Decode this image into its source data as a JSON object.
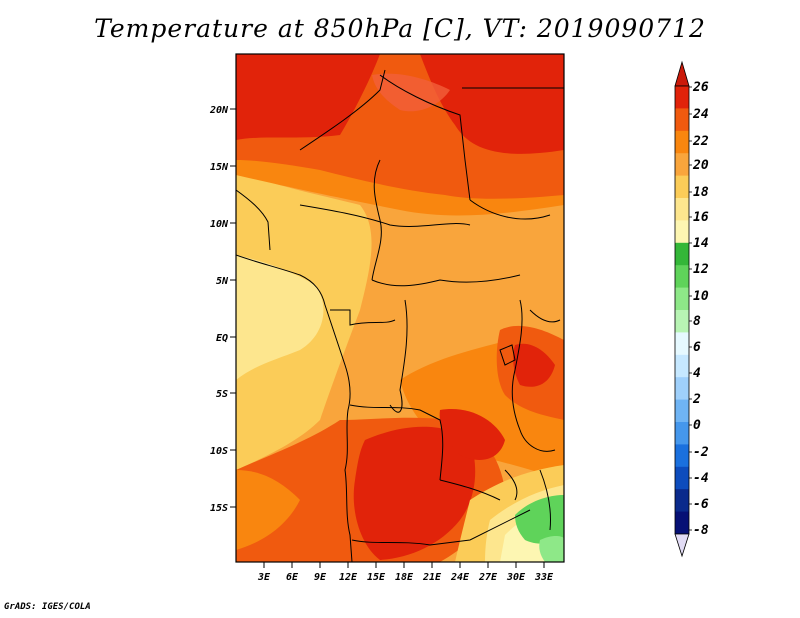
{
  "title": "Temperature at 850hPa [C], VT: 2019090712",
  "credit": "GrADS: IGES/COLA",
  "map": {
    "lat_labels": [
      "20N",
      "15N",
      "10N",
      "5N",
      "EQ",
      "5S",
      "10S",
      "15S"
    ],
    "lon_labels": [
      "3E",
      "6E",
      "9E",
      "12E",
      "15E",
      "18E",
      "21E",
      "24E",
      "27E",
      "30E",
      "33E"
    ]
  },
  "colorbar": {
    "labels": [
      "26",
      "24",
      "22",
      "20",
      "18",
      "16",
      "14",
      "12",
      "10",
      "8",
      "6",
      "4",
      "2",
      "0",
      "-2",
      "-4",
      "-6",
      "-8"
    ],
    "colors": [
      "#e1230a",
      "#f05a0f",
      "#f9860f",
      "#f9a53c",
      "#fbcc58",
      "#fde68e",
      "#fdf6b2",
      "#34b738",
      "#5fd35a",
      "#8ee888",
      "#b8f4b4",
      "#e6f9ff",
      "#c6e8ff",
      "#9fd0fb",
      "#6fb4f4",
      "#4597ec",
      "#1a70de",
      "#0d4cbd",
      "#0a2a8c",
      "#061075"
    ],
    "top_arrow_color": "#cb1a0a",
    "bottom_arrow_color": "#e2dcf5"
  }
}
